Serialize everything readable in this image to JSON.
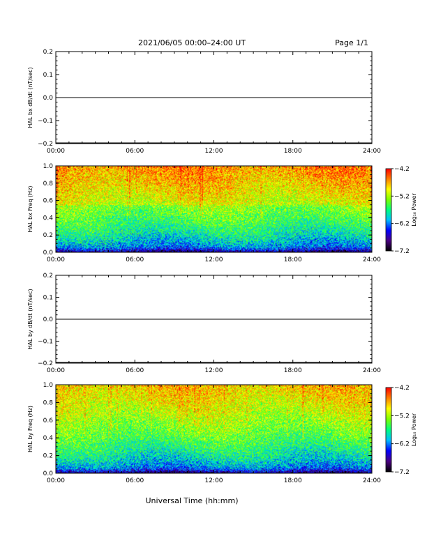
{
  "header": {
    "title": "2021/06/05  00:00–24:00 UT",
    "page": "Page 1/1"
  },
  "footer": {
    "xlabel": "Universal Time (hh:mm)"
  },
  "colorscale": {
    "colors": [
      "#000000",
      "#4b0082",
      "#0000ff",
      "#00bfff",
      "#00ff7f",
      "#7fff00",
      "#ffff00",
      "#ff7f00",
      "#ff0000"
    ]
  },
  "chart_data": [
    {
      "type": "line",
      "ylabel": "HAL bx dB/dt (nT/sec)",
      "x_ticks": [
        "00:00",
        "06:00",
        "12:00",
        "18:00",
        "24:00"
      ],
      "xlim": [
        0,
        24
      ],
      "ylim": [
        -0.2,
        0.2
      ],
      "y_ticks": [
        "0.2",
        "0.1",
        "0.0",
        "−0.1",
        "−0.2"
      ],
      "series": [
        {
          "x": [
            0,
            24
          ],
          "y": [
            0.0,
            0.0
          ]
        }
      ]
    },
    {
      "type": "heatmap",
      "ylabel": "HAL bx Freq (Hz)",
      "x_ticks": [
        "00:00",
        "06:00",
        "12:00",
        "18:00",
        "24:00"
      ],
      "xlim": [
        0,
        24
      ],
      "ylim": [
        0.0,
        1.0
      ],
      "y_ticks": [
        "1.0",
        "0.8",
        "0.6",
        "0.4",
        "0.2",
        "0.0"
      ],
      "colorbar": {
        "label": "Log₁₀ Power",
        "ticks": [
          "−4.2",
          "−5.2",
          "−6.2",
          "−7.2"
        ],
        "range": [
          -7.2,
          -4.2
        ]
      }
    },
    {
      "type": "line",
      "ylabel": "HAL by dB/dt (nT/sec)",
      "x_ticks": [
        "00:00",
        "06:00",
        "12:00",
        "18:00",
        "24:00"
      ],
      "xlim": [
        0,
        24
      ],
      "ylim": [
        -0.2,
        0.2
      ],
      "y_ticks": [
        "0.2",
        "0.1",
        "0.0",
        "−0.1",
        "−0.2"
      ],
      "series": [
        {
          "x": [
            0,
            24
          ],
          "y": [
            0.0,
            0.0
          ]
        }
      ]
    },
    {
      "type": "heatmap",
      "ylabel": "HAL by Freq (Hz)",
      "x_ticks": [
        "00:00",
        "06:00",
        "12:00",
        "18:00",
        "24:00"
      ],
      "xlim": [
        0,
        24
      ],
      "ylim": [
        0.0,
        1.0
      ],
      "y_ticks": [
        "1.0",
        "0.8",
        "0.6",
        "0.4",
        "0.2",
        "0.0"
      ],
      "colorbar": {
        "label": "Log₁₀ Power",
        "ticks": [
          "−4.2",
          "−5.2",
          "−6.2",
          "−7.2"
        ],
        "range": [
          -7.2,
          -4.2
        ]
      }
    }
  ]
}
